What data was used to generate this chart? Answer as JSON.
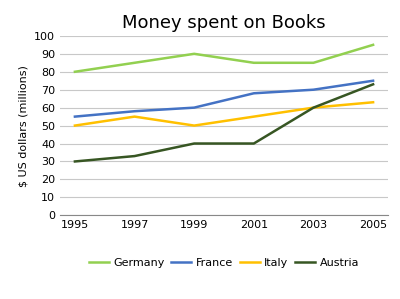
{
  "title": "Money spent on Books",
  "ylabel": "$ US dollars (millions)",
  "years": [
    1995,
    1997,
    1999,
    2001,
    2003,
    2005
  ],
  "series": {
    "Germany": [
      80,
      85,
      90,
      85,
      85,
      95
    ],
    "France": [
      55,
      58,
      60,
      68,
      70,
      75
    ],
    "Italy": [
      50,
      55,
      50,
      55,
      60,
      63
    ],
    "Austria": [
      30,
      33,
      40,
      40,
      60,
      73
    ]
  },
  "colors": {
    "Germany": "#92d050",
    "France": "#4472c4",
    "Italy": "#ffc000",
    "Austria": "#375623"
  },
  "ylim": [
    0,
    100
  ],
  "yticks": [
    0,
    10,
    20,
    30,
    40,
    50,
    60,
    70,
    80,
    90,
    100
  ],
  "xticks": [
    1995,
    1997,
    1999,
    2001,
    2003,
    2005
  ],
  "title_fontsize": 13,
  "axis_label_fontsize": 8,
  "tick_fontsize": 8,
  "legend_fontsize": 8,
  "linewidth": 1.8,
  "background_color": "#ffffff",
  "grid_color": "#c8c8c8"
}
